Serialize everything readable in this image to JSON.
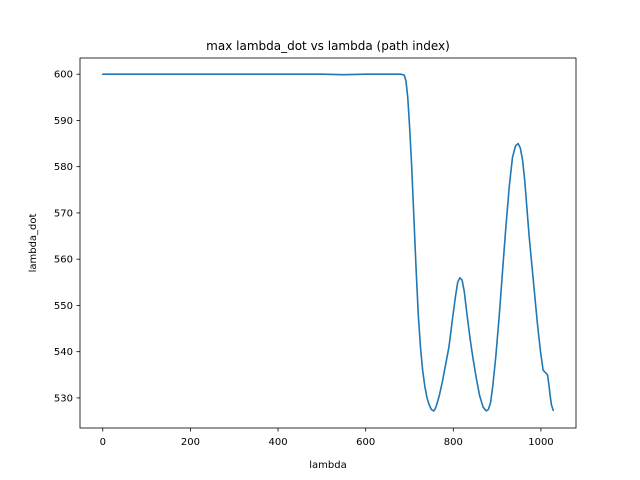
{
  "chart_data": {
    "type": "line",
    "title": "max lambda_dot vs lambda (path index)",
    "xlabel": "lambda",
    "ylabel": "lambda_dot",
    "xlim": [
      -52,
      1080
    ],
    "ylim": [
      523.5,
      603.5
    ],
    "xticks": [
      0,
      200,
      400,
      600,
      800,
      1000
    ],
    "yticks": [
      530,
      540,
      550,
      560,
      570,
      580,
      590,
      600
    ],
    "grid": false,
    "line_color": "#1f77b4",
    "series": [
      {
        "x": [
          0,
          50,
          100,
          200,
          300,
          400,
          500,
          550,
          600,
          650,
          680,
          688,
          692,
          696,
          700,
          705,
          710,
          715,
          720,
          725,
          730,
          735,
          740,
          745,
          750,
          755,
          758,
          762,
          768,
          775,
          782,
          790,
          798,
          805,
          810,
          815,
          820,
          825,
          830,
          838,
          845,
          852,
          860,
          868,
          875,
          880,
          885,
          890,
          897,
          905,
          912,
          920,
          928,
          935,
          942,
          948,
          953,
          958,
          963,
          968,
          973,
          978,
          985,
          992,
          999,
          1005,
          1010,
          1015,
          1018,
          1021,
          1024,
          1028
        ],
        "values": [
          600.0,
          600.0,
          600.0,
          600.0,
          600.0,
          600.0,
          600.0,
          599.9,
          600.0,
          600.0,
          600.0,
          599.8,
          598.5,
          595.0,
          589.0,
          580.0,
          569.0,
          558.0,
          548.0,
          541.0,
          536.0,
          532.5,
          530.0,
          528.5,
          527.5,
          527.2,
          527.5,
          528.5,
          530.5,
          533.5,
          537.0,
          541.0,
          547.0,
          552.0,
          555.0,
          556.0,
          555.5,
          553.0,
          549.0,
          543.0,
          538.5,
          534.5,
          530.5,
          528.0,
          527.2,
          527.5,
          529.0,
          532.5,
          539.0,
          548.0,
          557.0,
          567.0,
          576.0,
          582.0,
          584.5,
          585.0,
          584.0,
          581.5,
          577.0,
          571.0,
          565.0,
          560.0,
          553.0,
          546.0,
          540.0,
          536.0,
          535.5,
          535.0,
          533.0,
          530.5,
          528.5,
          527.3
        ]
      }
    ]
  }
}
